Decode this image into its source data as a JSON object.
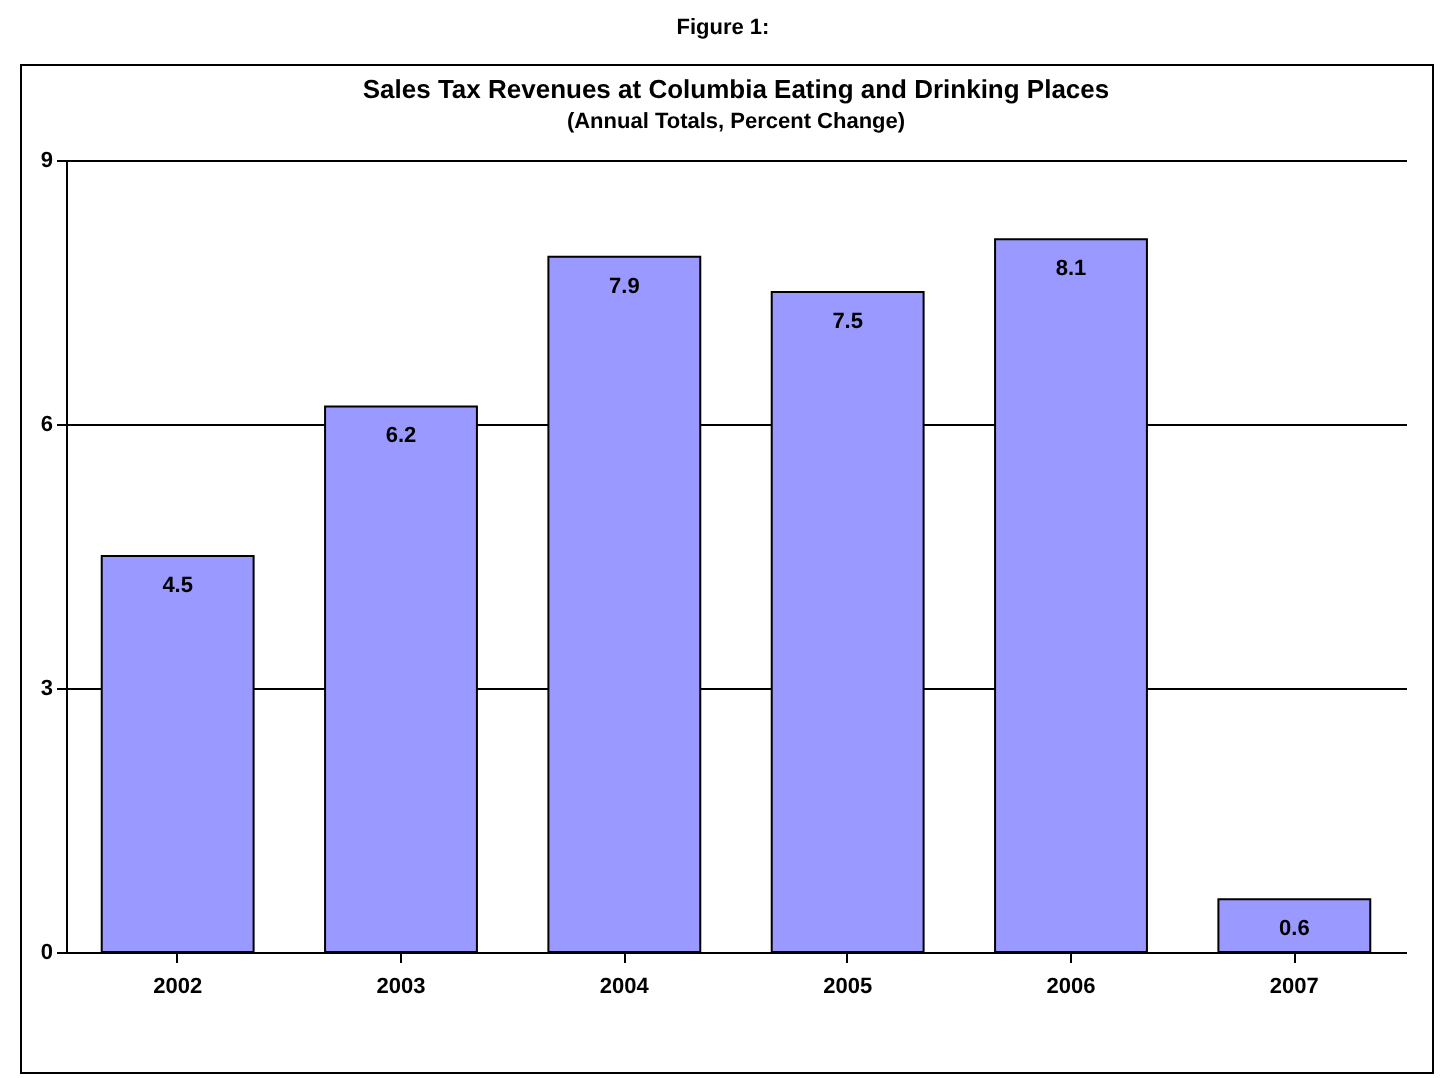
{
  "chart_data": {
    "type": "bar",
    "title": "Sales Tax Revenues at Columbia Eating and Drinking Places",
    "subtitle": "(Annual Totals, Percent Change)",
    "annotations": [
      "Figure 1:"
    ],
    "categories": [
      "2002",
      "2003",
      "2004",
      "2005",
      "2006",
      "2007"
    ],
    "values": [
      4.5,
      6.2,
      7.9,
      7.5,
      8.1,
      0.6
    ],
    "color": "#9999ff",
    "ylim": [
      0,
      9
    ],
    "yticks": [
      0,
      3,
      6,
      9
    ],
    "grid": "y",
    "data_labels": true
  }
}
